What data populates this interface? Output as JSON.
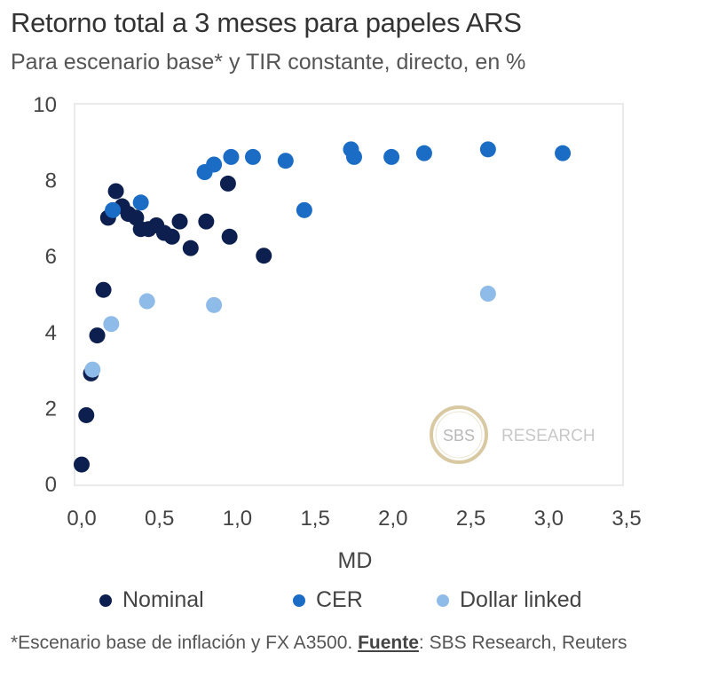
{
  "title": "Retorno total a 3 meses para papeles ARS",
  "subtitle": "Para escenario base* y TIR constante, directo, en %",
  "footnote": {
    "text_before": "*Escenario base de inflación y FX A3500. ",
    "source_label": "Fuente",
    "text_after": ": SBS Research, Reuters"
  },
  "watermark": {
    "badge": "SBS",
    "label": "RESEARCH",
    "badge_color": "#c9a96b"
  },
  "chart_data": {
    "type": "scatter",
    "xlabel": "MD",
    "ylabel": "",
    "xlim": [
      0,
      3.5
    ],
    "ylim": [
      0,
      10
    ],
    "x_ticks": [
      "0,0",
      "0,5",
      "1,0",
      "1,5",
      "2,0",
      "2,5",
      "3,0",
      "3,5"
    ],
    "y_ticks": [
      "0",
      "2",
      "4",
      "6",
      "8",
      "10"
    ],
    "grid": false,
    "legend_position": "bottom",
    "series": [
      {
        "name": "Nominal",
        "color": "#0d1f4f",
        "points": [
          [
            0.0,
            0.5
          ],
          [
            0.03,
            1.8
          ],
          [
            0.06,
            2.9
          ],
          [
            0.1,
            3.9
          ],
          [
            0.14,
            5.1
          ],
          [
            0.17,
            7.0
          ],
          [
            0.22,
            7.7
          ],
          [
            0.26,
            7.3
          ],
          [
            0.3,
            7.1
          ],
          [
            0.35,
            7.0
          ],
          [
            0.38,
            6.7
          ],
          [
            0.43,
            6.7
          ],
          [
            0.48,
            6.8
          ],
          [
            0.53,
            6.6
          ],
          [
            0.58,
            6.5
          ],
          [
            0.63,
            6.9
          ],
          [
            0.7,
            6.2
          ],
          [
            0.8,
            6.9
          ],
          [
            0.94,
            7.9
          ],
          [
            0.95,
            6.5
          ],
          [
            1.17,
            6.0
          ]
        ]
      },
      {
        "name": "CER",
        "color": "#1a6cc4",
        "points": [
          [
            0.2,
            7.2
          ],
          [
            0.38,
            7.4
          ],
          [
            0.79,
            8.2
          ],
          [
            0.85,
            8.4
          ],
          [
            0.96,
            8.6
          ],
          [
            1.1,
            8.6
          ],
          [
            1.31,
            8.5
          ],
          [
            1.43,
            7.2
          ],
          [
            1.73,
            8.8
          ],
          [
            1.75,
            8.6
          ],
          [
            1.99,
            8.6
          ],
          [
            2.2,
            8.7
          ],
          [
            2.61,
            8.8
          ],
          [
            3.09,
            8.7
          ]
        ]
      },
      {
        "name": "Dollar linked",
        "color": "#8fbbe8",
        "points": [
          [
            0.07,
            3.0
          ],
          [
            0.19,
            4.2
          ],
          [
            0.42,
            4.8
          ],
          [
            0.85,
            4.7
          ],
          [
            2.61,
            5.0
          ]
        ]
      }
    ]
  }
}
